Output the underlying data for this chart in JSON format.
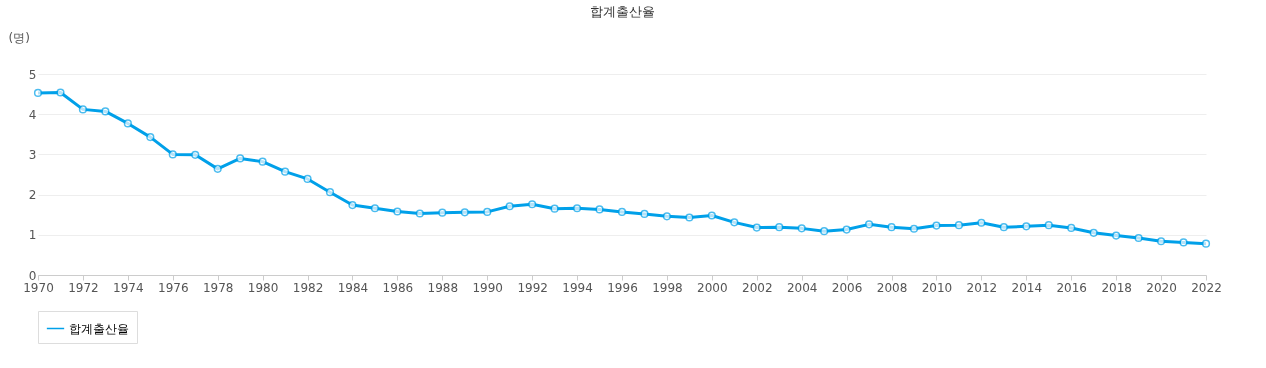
{
  "chart_data": {
    "type": "line",
    "title": "합계출산율",
    "ylabel": "(명)",
    "x": [
      1970,
      1971,
      1972,
      1973,
      1974,
      1975,
      1976,
      1977,
      1978,
      1979,
      1980,
      1981,
      1982,
      1983,
      1984,
      1985,
      1986,
      1987,
      1988,
      1989,
      1990,
      1991,
      1992,
      1993,
      1994,
      1995,
      1996,
      1997,
      1998,
      1999,
      2000,
      2001,
      2002,
      2003,
      2004,
      2005,
      2006,
      2007,
      2008,
      2009,
      2010,
      2011,
      2012,
      2013,
      2014,
      2015,
      2016,
      2017,
      2018,
      2019,
      2020,
      2021,
      2022
    ],
    "series": [
      {
        "name": "합계출산율",
        "color": "#00a0e9",
        "values": [
          4.53,
          4.54,
          4.12,
          4.07,
          3.77,
          3.43,
          3.0,
          2.99,
          2.64,
          2.9,
          2.82,
          2.57,
          2.39,
          2.06,
          1.74,
          1.66,
          1.58,
          1.53,
          1.55,
          1.56,
          1.57,
          1.71,
          1.76,
          1.65,
          1.66,
          1.63,
          1.57,
          1.52,
          1.46,
          1.43,
          1.48,
          1.31,
          1.18,
          1.19,
          1.16,
          1.09,
          1.13,
          1.26,
          1.19,
          1.15,
          1.23,
          1.24,
          1.3,
          1.19,
          1.21,
          1.24,
          1.17,
          1.05,
          0.98,
          0.92,
          0.84,
          0.81,
          0.78
        ]
      }
    ],
    "xlim": [
      1970,
      2022
    ],
    "xticks": [
      1970,
      1972,
      1974,
      1976,
      1978,
      1980,
      1982,
      1984,
      1986,
      1988,
      1990,
      1992,
      1994,
      1996,
      1998,
      2000,
      2002,
      2004,
      2006,
      2008,
      2010,
      2012,
      2014,
      2016,
      2018,
      2020,
      2022
    ],
    "ylim": [
      0,
      5
    ],
    "yticks": [
      0,
      1,
      2,
      3,
      4,
      5
    ],
    "grid": "y",
    "legend": "bottom",
    "marker": "circle",
    "line_style": "solid"
  }
}
